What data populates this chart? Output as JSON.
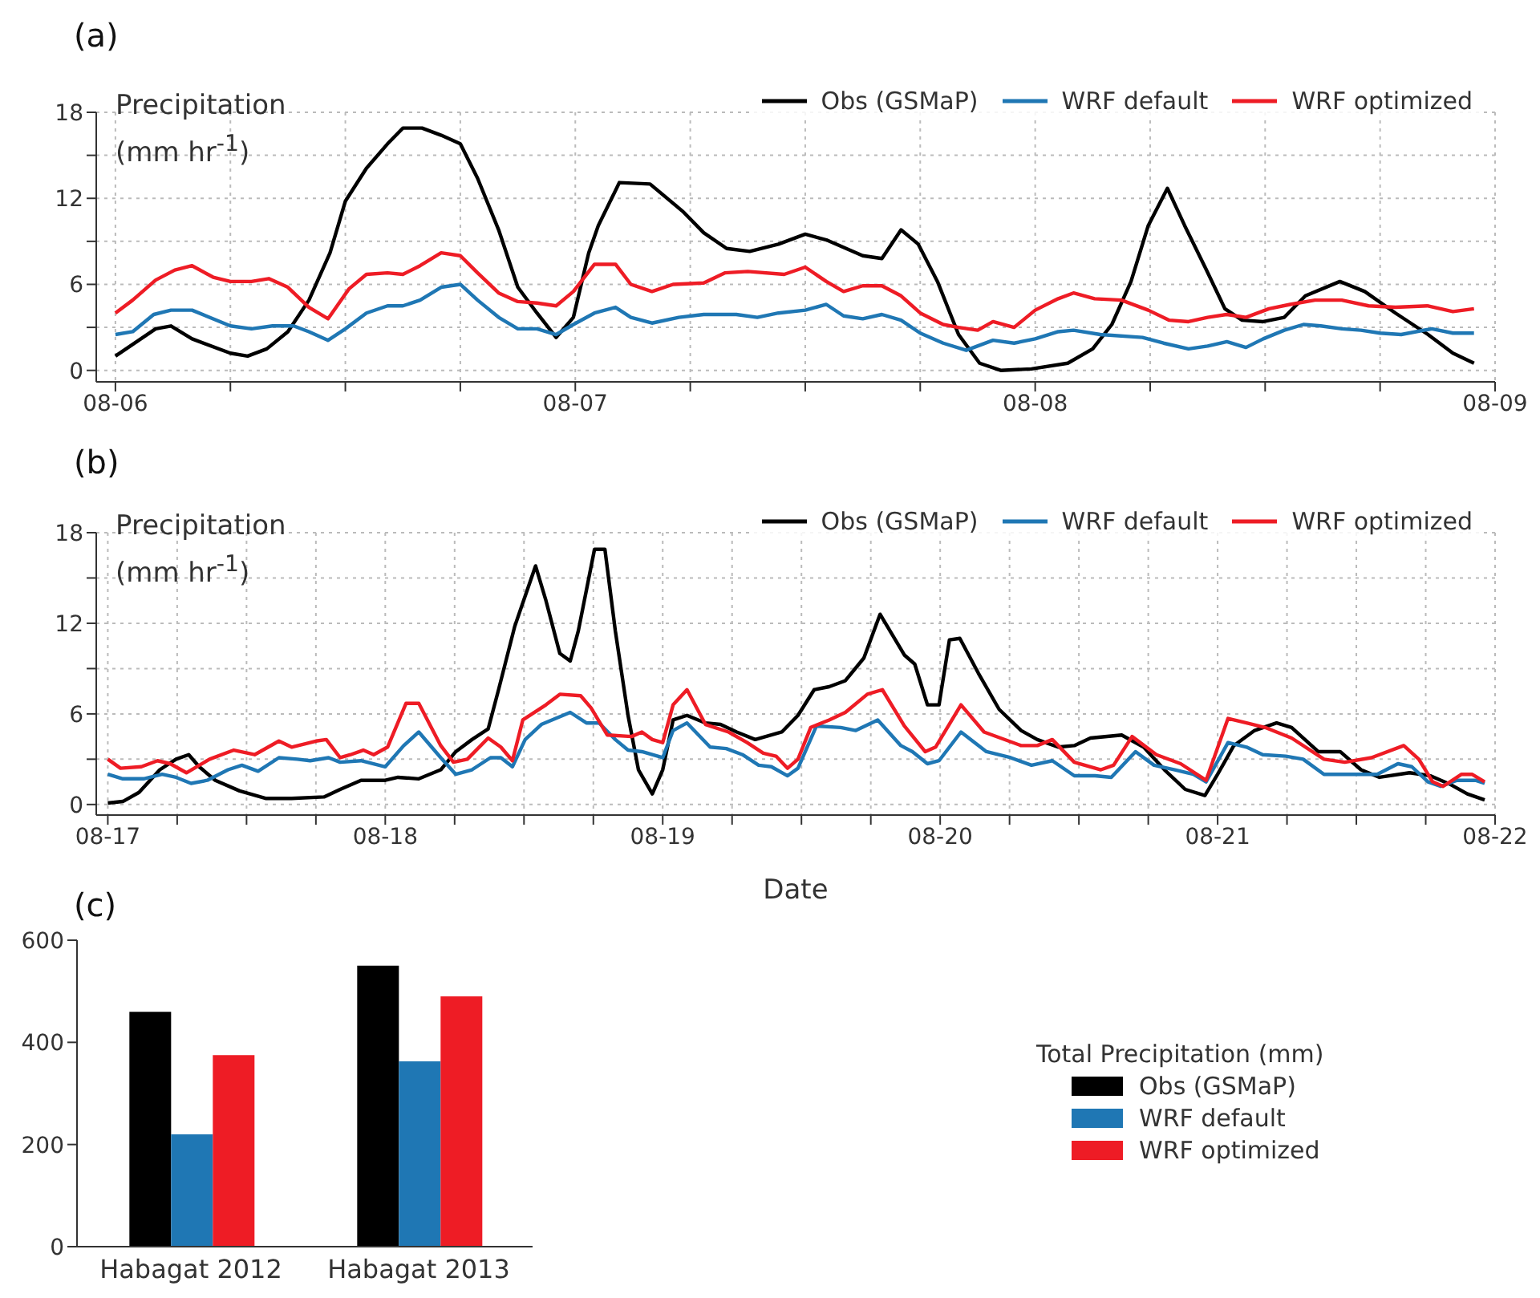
{
  "chart_data": [
    {
      "type": "line",
      "title": "(a)",
      "annotations": [
        "Precipitation (mm hr$^{-1}$)"
      ],
      "xlim": [
        "--08-05T23:00",
        "--08-09"
      ],
      "ylim": [
        -0.8,
        18
      ],
      "xticks": [
        {
          "value": "--08-06",
          "label": "08-06"
        },
        {
          "value": "--08-06T06:00",
          "label": null
        },
        {
          "value": "--08-06T12:00",
          "label": null
        },
        {
          "value": "--08-06T18:00",
          "label": null
        },
        {
          "value": "--08-07",
          "label": "08-07"
        },
        {
          "value": "--08-07T06:00",
          "label": null
        },
        {
          "value": "--08-07T12:00",
          "label": null
        },
        {
          "value": "--08-07T18:00",
          "label": null
        },
        {
          "value": "--08-08",
          "label": "08-08"
        },
        {
          "value": "--08-08T06:00",
          "label": null
        },
        {
          "value": "--08-08T12:00",
          "label": null
        },
        {
          "value": "--08-08T18:00",
          "label": null
        },
        {
          "value": "--08-09",
          "label": "08-09"
        }
      ],
      "yticks": [
        0,
        {
          "value": 3,
          "label": null
        },
        6,
        {
          "value": 9,
          "label": null
        },
        12,
        {
          "value": 15,
          "label": null
        },
        18
      ],
      "grid": true,
      "legend": "top right",
      "marker": "none",
      "line_style": "solid",
      "series": [
        {
          "name": "Obs (GSMaP)",
          "color": "#000000",
          "x": [
            "--08-06T00:00",
            "--08-06T02:06",
            "--08-06T02:54",
            "--08-06T04:00",
            "--08-06T06:00",
            "--08-06T06:54",
            "--08-06T07:54",
            "--08-06T09:00",
            "--08-06T10:06",
            "--08-06T11:12",
            "--08-06T12:00",
            "--08-06T13:06",
            "--08-06T14:12",
            "--08-06T15:00",
            "--08-06T16:00",
            "--08-06T17:00",
            "--08-06T18:00",
            "--08-06T18:54",
            "--08-06T20:00",
            "--08-06T21:00",
            "--08-06T22:00",
            "--08-06T23:00",
            "--08-06T23:54",
            "--08-07T00:42",
            "--08-07T01:12",
            "--08-07T02:18",
            "--08-07T03:54",
            "--08-07T05:36",
            "--08-07T06:42",
            "--08-07T07:54",
            "--08-07T09:06",
            "--08-07T10:36",
            "--08-07T12:00",
            "--08-07T13:06",
            "--08-07T15:00",
            "--08-07T16:00",
            "--08-07T17:00",
            "--08-07T17:54",
            "--08-07T18:54",
            "--08-07T20:00",
            "--08-07T21:06",
            "--08-07T22:12",
            "--08-07T23:48",
            "--08-08T01:42",
            "--08-08T03:00",
            "--08-08T04:00",
            "--08-08T05:00",
            "--08-08T05:54",
            "--08-08T06:54",
            "--08-08T07:48",
            "--08-08T08:54",
            "--08-08T09:54",
            "--08-08T10:48",
            "--08-08T11:54",
            "--08-08T13:00",
            "--08-08T14:06",
            "--08-08T15:54",
            "--08-08T17:12",
            "--08-08T18:48",
            "--08-08T20:30",
            "--08-08T21:48",
            "--08-08T22:54"
          ],
          "values": [
            1.0,
            2.9,
            3.1,
            2.2,
            1.2,
            1.0,
            1.5,
            2.7,
            4.9,
            8.2,
            11.8,
            14.1,
            15.8,
            16.9,
            16.9,
            16.4,
            15.8,
            13.4,
            9.8,
            5.8,
            4.0,
            2.3,
            3.7,
            8.2,
            10.1,
            13.1,
            13.0,
            11.1,
            9.6,
            8.5,
            8.3,
            8.8,
            9.5,
            9.1,
            8.0,
            7.8,
            9.8,
            8.8,
            6.2,
            2.5,
            0.5,
            0,
            0.1,
            0.5,
            1.5,
            3.2,
            6.2,
            10.1,
            12.7,
            10.1,
            7.1,
            4.3,
            3.5,
            3.4,
            3.7,
            5.2,
            6.2,
            5.5,
            4.0,
            2.5,
            1.2,
            0.5
          ]
        },
        {
          "name": "WRF default",
          "color": "#1f77b4",
          "x": [
            "--08-06T00:00",
            "--08-06T00:54",
            "--08-06T02:00",
            "--08-06T02:54",
            "--08-06T04:00",
            "--08-06T06:00",
            "--08-06T07:06",
            "--08-06T08:12",
            "--08-06T09:18",
            "--08-06T10:06",
            "--08-06T11:06",
            "--08-06T12:00",
            "--08-06T13:06",
            "--08-06T14:12",
            "--08-06T15:00",
            "--08-06T15:54",
            "--08-06T17:00",
            "--08-06T18:00",
            "--08-06T18:54",
            "--08-06T20:00",
            "--08-06T21:00",
            "--08-06T22:00",
            "--08-06T23:00",
            "--08-06T23:54",
            "--08-07T01:00",
            "--08-07T02:06",
            "--08-07T02:54",
            "--08-07T04:00",
            "--08-07T05:24",
            "--08-07T06:42",
            "--08-07T08:24",
            "--08-07T09:30",
            "--08-07T10:36",
            "--08-07T12:00",
            "--08-07T13:06",
            "--08-07T14:00",
            "--08-07T15:00",
            "--08-07T16:00",
            "--08-07T17:00",
            "--08-07T18:00",
            "--08-07T19:12",
            "--08-07T20:24",
            "--08-07T21:48",
            "--08-07T22:54",
            "--08-08T00:00",
            "--08-08T01:12",
            "--08-08T02:00",
            "--08-08T03:24",
            "--08-08T05:36",
            "--08-08T06:42",
            "--08-08T08:00",
            "--08-08T09:00",
            "--08-08T10:00",
            "--08-08T11:00",
            "--08-08T11:54",
            "--08-08T13:00",
            "--08-08T14:00",
            "--08-08T14:54",
            "--08-08T16:00",
            "--08-08T17:00",
            "--08-08T18:00",
            "--08-08T19:06",
            "--08-08T20:42",
            "--08-08T21:48",
            "--08-08T22:54"
          ],
          "values": [
            2.5,
            2.7,
            3.9,
            4.2,
            4.2,
            3.1,
            2.9,
            3.1,
            3.1,
            2.7,
            2.1,
            2.9,
            4.0,
            4.5,
            4.5,
            4.9,
            5.8,
            6.0,
            4.9,
            3.7,
            2.9,
            2.9,
            2.5,
            3.2,
            4.0,
            4.4,
            3.7,
            3.3,
            3.7,
            3.9,
            3.9,
            3.7,
            4.0,
            4.2,
            4.6,
            3.8,
            3.6,
            3.9,
            3.5,
            2.6,
            1.9,
            1.4,
            2.1,
            1.9,
            2.2,
            2.7,
            2.8,
            2.5,
            2.3,
            1.9,
            1.5,
            1.7,
            2.0,
            1.6,
            2.2,
            2.8,
            3.2,
            3.1,
            2.9,
            2.8,
            2.6,
            2.5,
            2.9,
            2.6,
            2.6
          ]
        },
        {
          "name": "WRF optimized",
          "color": "#ee1c25",
          "x": [
            "--08-06T00:00",
            "--08-06T00:54",
            "--08-06T02:06",
            "--08-06T03:06",
            "--08-06T04:00",
            "--08-06T05:06",
            "--08-06T06:00",
            "--08-06T07:06",
            "--08-06T08:00",
            "--08-06T09:00",
            "--08-06T10:06",
            "--08-06T11:06",
            "--08-06T12:12",
            "--08-06T13:06",
            "--08-06T14:12",
            "--08-06T15:00",
            "--08-06T15:54",
            "--08-06T17:00",
            "--08-06T18:00",
            "--08-06T18:54",
            "--08-06T20:00",
            "--08-06T21:00",
            "--08-06T22:00",
            "--08-06T23:00",
            "--08-06T23:54",
            "--08-07T01:00",
            "--08-07T02:06",
            "--08-07T02:54",
            "--08-07T04:00",
            "--08-07T05:06",
            "--08-07T06:42",
            "--08-07T07:48",
            "--08-07T09:00",
            "--08-07T10:54",
            "--08-07T12:00",
            "--08-07T13:06",
            "--08-07T14:00",
            "--08-07T15:00",
            "--08-07T16:00",
            "--08-07T17:00",
            "--08-07T18:00",
            "--08-07T19:12",
            "--08-07T20:00",
            "--08-07T21:00",
            "--08-07T21:48",
            "--08-07T22:54",
            "--08-08T00:00",
            "--08-08T01:12",
            "--08-08T02:00",
            "--08-08T03:06",
            "--08-08T04:30",
            "--08-08T05:54",
            "--08-08T07:00",
            "--08-08T08:00",
            "--08-08T09:00",
            "--08-08T10:00",
            "--08-08T11:00",
            "--08-08T12:12",
            "--08-08T13:18",
            "--08-08T14:36",
            "--08-08T16:00",
            "--08-08T17:24",
            "--08-08T18:48",
            "--08-08T20:30",
            "--08-08T21:48",
            "--08-08T22:54"
          ],
          "values": [
            4.0,
            4.9,
            6.3,
            7.0,
            7.3,
            6.5,
            6.2,
            6.2,
            6.4,
            5.8,
            4.4,
            3.6,
            5.7,
            6.7,
            6.8,
            6.7,
            7.3,
            8.2,
            8.0,
            6.8,
            5.4,
            4.8,
            4.7,
            4.5,
            5.5,
            7.4,
            7.4,
            6.0,
            5.5,
            6.0,
            6.1,
            6.8,
            6.9,
            6.7,
            7.2,
            6.2,
            5.5,
            5.9,
            5.9,
            5.2,
            4.0,
            3.2,
            3.0,
            2.8,
            3.4,
            3.0,
            4.2,
            5.0,
            5.4,
            5.0,
            4.9,
            4.2,
            3.5,
            3.4,
            3.7,
            3.9,
            3.7,
            4.3,
            4.6,
            4.9,
            4.9,
            4.5,
            4.4,
            4.5,
            4.1,
            4.3
          ]
        }
      ]
    },
    {
      "type": "line",
      "title": "(b)",
      "xlabel": "Date",
      "annotations": [
        "Precipitation (mm hr$^{-1}$)"
      ],
      "xlim": [
        "--08-16T23:00",
        "--08-22"
      ],
      "ylim": [
        -0.7,
        18
      ],
      "xticks": [
        {
          "value": "--08-17",
          "label": "08-17"
        },
        {
          "value": "--08-17T06:00",
          "label": null
        },
        {
          "value": "--08-17T12:00",
          "label": null
        },
        {
          "value": "--08-17T18:00",
          "label": null
        },
        {
          "value": "--08-18",
          "label": "08-18"
        },
        {
          "value": "--08-18T06:00",
          "label": null
        },
        {
          "value": "--08-18T12:00",
          "label": null
        },
        {
          "value": "--08-18T18:00",
          "label": null
        },
        {
          "value": "--08-19",
          "label": "08-19"
        },
        {
          "value": "--08-19T06:00",
          "label": null
        },
        {
          "value": "--08-19T12:00",
          "label": null
        },
        {
          "value": "--08-19T18:00",
          "label": null
        },
        {
          "value": "--08-20",
          "label": "08-20"
        },
        {
          "value": "--08-20T06:00",
          "label": null
        },
        {
          "value": "--08-20T12:00",
          "label": null
        },
        {
          "value": "--08-20T18:00",
          "label": null
        },
        {
          "value": "--08-21",
          "label": "08-21"
        },
        {
          "value": "--08-21T06:00",
          "label": null
        },
        {
          "value": "--08-21T12:00",
          "label": null
        },
        {
          "value": "--08-21T18:00",
          "label": null
        },
        {
          "value": "--08-22",
          "label": "08-22"
        }
      ],
      "yticks": [
        0,
        {
          "value": 3,
          "label": null
        },
        6,
        {
          "value": 9,
          "label": null
        },
        12,
        {
          "value": 15,
          "label": null
        },
        18
      ],
      "grid": true,
      "legend": "top right",
      "marker": "none",
      "line_style": "solid",
      "series": [
        {
          "name": "Obs (GSMaP)",
          "color": "#000000",
          "x": [
            "--08-17T00:00",
            "--08-17T01:18",
            "--08-17T02:42",
            "--08-17T04:30",
            "--08-17T05:54",
            "--08-17T07:00",
            "--08-17T07:54",
            "--08-17T09:18",
            "--08-17T11:24",
            "--08-17T13:42",
            "--08-17T15:54",
            "--08-17T18:42",
            "--08-17T20:06",
            "--08-17T21:54",
            "--08-18T00:00",
            "--08-18T01:06",
            "--08-18T02:54",
            "--08-18T04:48",
            "--08-18T06:06",
            "--08-18T07:30",
            "--08-18T08:54",
            "--08-18T09:48",
            "--08-18T11:12",
            "--08-18T13:00",
            "--08-18T13:54",
            "--08-18T15:06",
            "--08-18T16:00",
            "--08-18T16:42",
            "--08-18T18:06",
            "--08-18T19:00",
            "--08-18T19:54",
            "--08-18T21:00",
            "--08-18T21:54",
            "--08-18T23:06",
            "--08-19T00:00",
            "--08-19T00:54",
            "--08-19T02:06",
            "--08-19T03:42",
            "--08-19T05:00",
            "--08-19T06:24",
            "--08-19T08:00",
            "--08-19T10:18",
            "--08-19T11:42",
            "--08-19T13:06",
            "--08-19T14:24",
            "--08-19T15:48",
            "--08-19T17:24",
            "--08-19T18:48",
            "--08-19T20:54",
            "--08-19T21:48",
            "--08-19T22:54",
            "--08-19T23:54",
            "--08-20T00:48",
            "--08-20T01:42",
            "--08-20T03:18",
            "--08-20T05:06",
            "--08-20T07:00",
            "--08-20T08:24",
            "--08-20T10:12",
            "--08-20T11:36",
            "--08-20T13:00",
            "--08-20T15:42",
            "--08-20T17:36",
            "--08-20T19:24",
            "--08-20T21:12",
            "--08-20T22:54",
            "--08-21T00:00",
            "--08-21T01:24",
            "--08-21T03:12",
            "--08-21T05:06",
            "--08-21T06:24",
            "--08-21T08:42",
            "--08-21T10:36",
            "--08-21T12:24",
            "--08-21T14:00",
            "--08-21T16:36",
            "--08-21T18:24",
            "--08-21T20:12",
            "--08-21T21:36",
            "--08-21T23:06"
          ],
          "values": [
            0.1,
            0.2,
            0.8,
            2.3,
            3.0,
            3.3,
            2.5,
            1.6,
            0.9,
            0.4,
            0.4,
            0.5,
            1.0,
            1.6,
            1.6,
            1.8,
            1.7,
            2.3,
            3.5,
            4.3,
            5.0,
            7.6,
            11.8,
            15.8,
            13.5,
            10.0,
            9.5,
            11.5,
            16.9,
            16.9,
            11.5,
            5.9,
            2.3,
            0.7,
            2.3,
            5.6,
            5.9,
            5.4,
            5.3,
            4.8,
            4.3,
            4.8,
            5.9,
            7.6,
            7.8,
            8.2,
            9.7,
            12.6,
            9.9,
            9.3,
            6.6,
            6.6,
            10.9,
            11.0,
            8.7,
            6.3,
            4.9,
            4.3,
            3.8,
            3.9,
            4.4,
            4.6,
            3.8,
            2.3,
            1.0,
            0.6,
            2.0,
            3.9,
            4.9,
            5.4,
            5.1,
            3.5,
            3.5,
            2.3,
            1.8,
            2.1,
            1.9,
            1.3,
            0.7,
            0.3
          ]
        },
        {
          "name": "WRF default",
          "color": "#1f77b4",
          "x": [
            "--08-17T00:00",
            "--08-17T01:18",
            "--08-17T03:06",
            "--08-17T04:42",
            "--08-17T05:54",
            "--08-17T07:12",
            "--08-17T08:36",
            "--08-17T10:24",
            "--08-17T11:36",
            "--08-17T13:00",
            "--08-17T14:48",
            "--08-17T16:24",
            "--08-17T17:30",
            "--08-17T19:06",
            "--08-17T20:06",
            "--08-17T21:54",
            "--08-18T00:00",
            "--08-18T01:36",
            "--08-18T02:54",
            "--08-18T04:48",
            "--08-18T06:06",
            "--08-18T07:30",
            "--08-18T09:06",
            "--08-18T10:00",
            "--08-18T11:00",
            "--08-18T12:06",
            "--08-18T13:30",
            "--08-18T16:00",
            "--08-18T17:24",
            "--08-18T18:30",
            "--08-18T19:54",
            "--08-18T21:00",
            "--08-18T22:12",
            "--08-19T00:00",
            "--08-19T00:54",
            "--08-19T02:06",
            "--08-19T04:06",
            "--08-19T05:30",
            "--08-19T06:54",
            "--08-19T08:18",
            "--08-19T09:24",
            "--08-19T10:48",
            "--08-19T11:42",
            "--08-19T13:18",
            "--08-19T15:24",
            "--08-19T16:42",
            "--08-19T18:36",
            "--08-19T20:36",
            "--08-19T21:36",
            "--08-19T22:54",
            "--08-19T23:54",
            "--08-20T01:48",
            "--08-20T04:00",
            "--08-20T06:06",
            "--08-20T07:54",
            "--08-20T09:42",
            "--08-20T11:36",
            "--08-20T13:24",
            "--08-20T14:48",
            "--08-20T16:54",
            "--08-20T18:30",
            "--08-20T20:18",
            "--08-20T21:54",
            "--08-20T23:00",
            "--08-21T00:54",
            "--08-21T02:30",
            "--08-21T03:54",
            "--08-21T05:54",
            "--08-21T07:24",
            "--08-21T09:12",
            "--08-21T11:30",
            "--08-21T13:48",
            "--08-21T15:36",
            "--08-21T16:48",
            "--08-21T18:12",
            "--08-21T19:18",
            "--08-21T20:42",
            "--08-21T22:18",
            "--08-21T23:06"
          ],
          "values": [
            2.0,
            1.7,
            1.7,
            2.0,
            1.8,
            1.4,
            1.6,
            2.3,
            2.6,
            2.2,
            3.1,
            3.0,
            2.9,
            3.1,
            2.8,
            2.9,
            2.5,
            3.9,
            4.8,
            3.1,
            2.0,
            2.3,
            3.1,
            3.1,
            2.5,
            4.3,
            5.3,
            6.1,
            5.4,
            5.4,
            4.3,
            3.6,
            3.5,
            3.1,
            4.9,
            5.4,
            3.8,
            3.7,
            3.3,
            2.6,
            2.5,
            1.9,
            2.4,
            5.2,
            5.1,
            4.9,
            5.6,
            3.9,
            3.5,
            2.7,
            2.9,
            4.8,
            3.5,
            3.1,
            2.6,
            2.9,
            1.9,
            1.9,
            1.8,
            3.5,
            2.6,
            2.3,
            2.0,
            1.5,
            4.1,
            3.8,
            3.3,
            3.2,
            3.0,
            2.0,
            2.0,
            2.0,
            2.7,
            2.5,
            1.5,
            1.2,
            1.6,
            1.6,
            1.4
          ]
        },
        {
          "name": "WRF optimized",
          "color": "#ee1c25",
          "x": [
            "--08-17T00:00",
            "--08-17T01:06",
            "--08-17T02:54",
            "--08-17T04:18",
            "--08-17T05:24",
            "--08-17T06:48",
            "--08-17T08:48",
            "--08-17T10:54",
            "--08-17T12:42",
            "--08-17T14:48",
            "--08-17T15:54",
            "--08-17T18:00",
            "--08-17T18:54",
            "--08-17T20:06",
            "--08-17T21:00",
            "--08-17T22:06",
            "--08-17T23:00",
            "--08-18T00:12",
            "--08-18T01:48",
            "--08-18T02:54",
            "--08-18T04:48",
            "--08-18T05:54",
            "--08-18T07:06",
            "--08-18T08:54",
            "--08-18T10:00",
            "--08-18T11:00",
            "--08-18T11:54",
            "--08-18T13:54",
            "--08-18T15:06",
            "--08-18T16:54",
            "--08-18T17:48",
            "--08-18T19:12",
            "--08-18T21:18",
            "--08-18T22:12",
            "--08-18T23:06",
            "--08-19T00:00",
            "--08-19T00:54",
            "--08-19T02:06",
            "--08-19T03:42",
            "--08-19T05:42",
            "--08-19T07:18",
            "--08-19T08:42",
            "--08-19T09:48",
            "--08-19T10:48",
            "--08-19T11:42",
            "--08-19T12:48",
            "--08-19T14:24",
            "--08-19T15:48",
            "--08-19T17:42",
            "--08-19T19:00",
            "--08-19T20:54",
            "--08-19T22:42",
            "--08-19T23:36",
            "--08-20T01:48",
            "--08-20T03:48",
            "--08-20T07:00",
            "--08-20T08:24",
            "--08-20T09:42",
            "--08-20T11:36",
            "--08-20T13:54",
            "--08-20T15:00",
            "--08-20T16:36",
            "--08-20T18:42",
            "--08-20T20:48",
            "--08-20T23:00",
            "--08-21T00:54",
            "--08-21T02:30",
            "--08-21T04:06",
            "--08-21T06:24",
            "--08-21T09:12",
            "--08-21T11:00",
            "--08-21T13:18",
            "--08-21T16:06",
            "--08-21T17:24",
            "--08-21T18:36",
            "--08-21T19:30",
            "--08-21T21:06",
            "--08-21T22:00",
            "--08-21T23:06"
          ],
          "values": [
            3.0,
            2.4,
            2.5,
            2.9,
            2.7,
            2.1,
            3.0,
            3.6,
            3.3,
            4.2,
            3.8,
            4.2,
            4.3,
            3.1,
            3.3,
            3.6,
            3.3,
            3.8,
            6.7,
            6.7,
            3.9,
            2.8,
            3.0,
            4.4,
            3.8,
            2.9,
            5.6,
            6.6,
            7.3,
            7.2,
            6.4,
            4.6,
            4.5,
            4.8,
            4.3,
            4.1,
            6.6,
            7.6,
            5.3,
            4.8,
            4.1,
            3.4,
            3.2,
            2.4,
            3.0,
            5.1,
            5.6,
            6.1,
            7.3,
            7.6,
            5.2,
            3.5,
            3.8,
            6.6,
            4.8,
            3.9,
            3.9,
            4.3,
            2.8,
            2.3,
            2.6,
            4.5,
            3.3,
            2.7,
            1.6,
            5.7,
            5.4,
            5.1,
            4.4,
            3.0,
            2.8,
            3.1,
            3.9,
            3.0,
            1.5,
            1.2,
            2.0,
            2.0,
            1.5
          ]
        }
      ]
    },
    {
      "type": "bar",
      "title": "(c)",
      "legend_title": "Total Precipitation (mm)",
      "categories": [
        "Habagat 2012",
        "Habagat 2013"
      ],
      "ylim": [
        0,
        600
      ],
      "yticks": [
        0,
        200,
        400,
        600
      ],
      "grid": false,
      "legend": "right",
      "series": [
        {
          "name": "Obs (GSMaP)",
          "color": "#000000",
          "values": [
            460,
            550
          ]
        },
        {
          "name": "WRF default",
          "color": "#1f77b4",
          "values": [
            220,
            363
          ]
        },
        {
          "name": "WRF optimized",
          "color": "#ee1c25",
          "values": [
            375,
            490
          ]
        }
      ]
    }
  ]
}
